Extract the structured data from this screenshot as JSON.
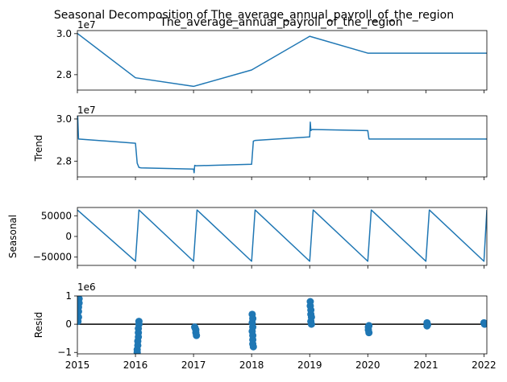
{
  "figure": {
    "suptitle": "Seasonal Decomposition of The_average_annual_payroll_of_the_region"
  },
  "chart_data": [
    {
      "type": "line",
      "title": "The_average_annual_payroll_of_the_region",
      "ylabel": "",
      "offset_label": "1e7",
      "xlim": [
        2015,
        2022.05
      ],
      "ylim": [
        27250000,
        30150000
      ],
      "yticks": [
        28000000,
        30000000
      ],
      "ytick_labels": [
        "2.8",
        "3.0"
      ],
      "x": [
        2015,
        2016,
        2017,
        2018,
        2019,
        2020,
        2021,
        2022.05
      ],
      "values": [
        30010000,
        27850000,
        27430000,
        28230000,
        29870000,
        29050000,
        29050000,
        29050000
      ]
    },
    {
      "type": "line",
      "title": "",
      "ylabel": "Trend",
      "offset_label": "1e7",
      "xlim": [
        2015,
        2022.05
      ],
      "ylim": [
        27250000,
        30150000
      ],
      "yticks": [
        28000000,
        30000000
      ],
      "ytick_labels": [
        "2.8",
        "3.0"
      ],
      "x": [
        2015,
        2015.005,
        2015.02,
        2016,
        2016.03,
        2016.06,
        2016.1,
        2017,
        2017.01,
        2017.02,
        2017.04,
        2018,
        2018.03,
        2018.06,
        2019,
        2019.01,
        2019.02,
        2019.04,
        2020,
        2020.02,
        2020.05,
        2021,
        2022.05
      ],
      "values": [
        29900000,
        30150000,
        29050000,
        28850000,
        27900000,
        27700000,
        27680000,
        27620000,
        27450000,
        27800000,
        27780000,
        27850000,
        28950000,
        28980000,
        29150000,
        29850000,
        29450000,
        29500000,
        29450000,
        29050000,
        29050000,
        29050000,
        29050000
      ]
    },
    {
      "type": "line",
      "title": "",
      "ylabel": "Seasonal",
      "offset_label": "",
      "xlim": [
        2015,
        2022.05
      ],
      "ylim": [
        -70000,
        70000
      ],
      "yticks": [
        50000,
        0,
        -50000
      ],
      "ytick_labels": [
        "50000",
        "0",
        "−50000"
      ],
      "x": [
        2015,
        2016,
        2016.06,
        2017,
        2017.06,
        2018,
        2018.06,
        2019,
        2019.06,
        2020,
        2020.06,
        2021,
        2021.06,
        2022,
        2022.05
      ],
      "values": [
        64000,
        -60000,
        64000,
        -60000,
        64000,
        -60000,
        64000,
        -60000,
        64000,
        -60000,
        64000,
        -60000,
        64000,
        -60000,
        64000
      ]
    },
    {
      "type": "scatter",
      "title": "",
      "ylabel": "Resid",
      "offset_label": "1e6",
      "xlim": [
        2015,
        2022.05
      ],
      "ylim": [
        -1050000,
        1000000
      ],
      "yticks": [
        1000000,
        0,
        -1000000
      ],
      "ytick_labels": [
        "1",
        "0",
        "−1"
      ],
      "xticks": [
        2015,
        2016,
        2017,
        2018,
        2019,
        2020,
        2021,
        2022
      ],
      "xtick_labels": [
        "2015",
        "2016",
        "2017",
        "2018",
        "2019",
        "2020",
        "2021",
        "2022"
      ],
      "zero_line": 0,
      "points": [
        [
          2015.03,
          900000
        ],
        [
          2015.03,
          750000
        ],
        [
          2015.02,
          600000
        ],
        [
          2015.02,
          450000
        ],
        [
          2015.02,
          250000
        ],
        [
          2015.01,
          100000
        ],
        [
          2016.06,
          100000
        ],
        [
          2016.06,
          0
        ],
        [
          2016.05,
          -150000
        ],
        [
          2016.05,
          -300000
        ],
        [
          2016.05,
          -450000
        ],
        [
          2016.04,
          -600000
        ],
        [
          2016.04,
          -750000
        ],
        [
          2016.03,
          -900000
        ],
        [
          2016.03,
          -1000000
        ],
        [
          2017.02,
          -100000
        ],
        [
          2017.04,
          -200000
        ],
        [
          2017.04,
          -300000
        ],
        [
          2017.05,
          -400000
        ],
        [
          2017.03,
          -150000
        ],
        [
          2018.01,
          350000
        ],
        [
          2018.02,
          200000
        ],
        [
          2018.01,
          50000
        ],
        [
          2018.02,
          -100000
        ],
        [
          2018.01,
          -250000
        ],
        [
          2018.02,
          -400000
        ],
        [
          2018.02,
          -550000
        ],
        [
          2018.02,
          -700000
        ],
        [
          2018.03,
          -800000
        ],
        [
          2019.01,
          800000
        ],
        [
          2019.01,
          650000
        ],
        [
          2019.02,
          500000
        ],
        [
          2019.02,
          350000
        ],
        [
          2019.03,
          250000
        ],
        [
          2019.02,
          100000
        ],
        [
          2019.03,
          0
        ],
        [
          2020.02,
          -50000
        ],
        [
          2020.01,
          -200000
        ],
        [
          2020.02,
          -300000
        ],
        [
          2020.01,
          -100000
        ],
        [
          2021.02,
          50000
        ],
        [
          2021.03,
          -20000
        ],
        [
          2021.02,
          -60000
        ],
        [
          2022.0,
          50000
        ],
        [
          2022.01,
          0
        ],
        [
          2022.02,
          20000
        ]
      ]
    }
  ]
}
